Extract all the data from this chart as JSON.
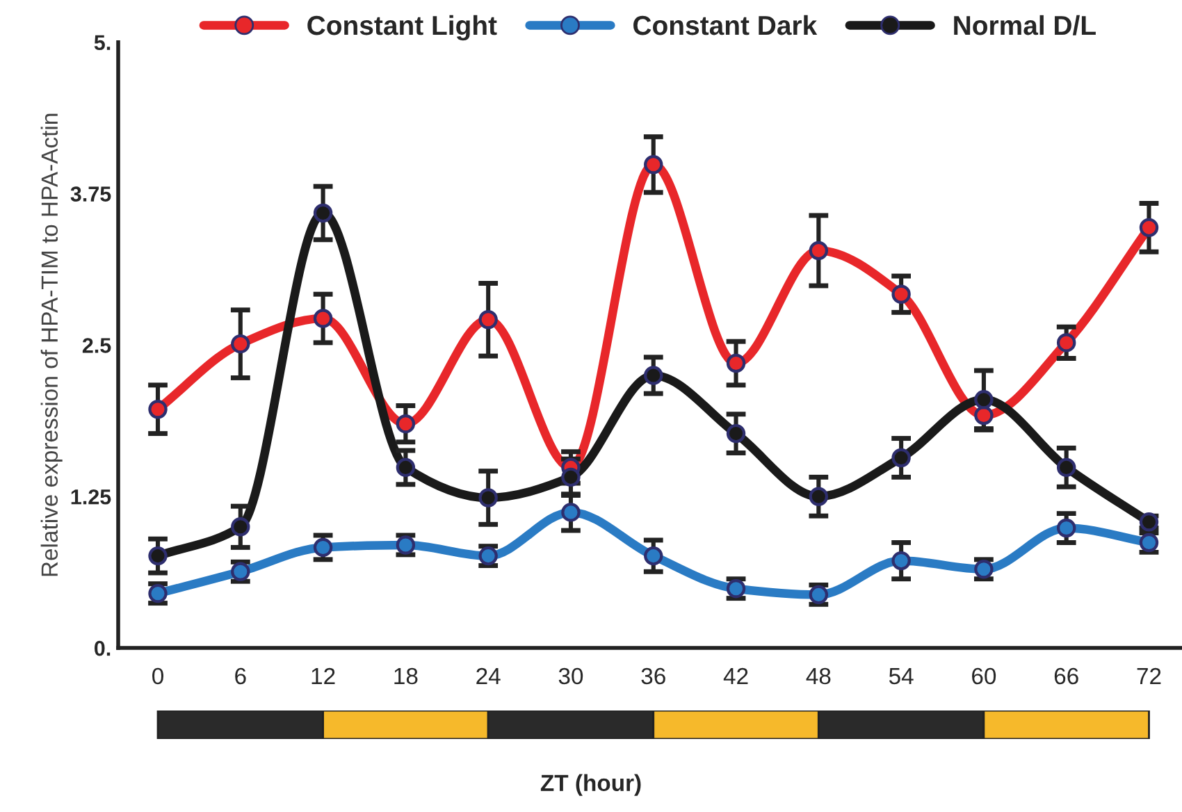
{
  "chart_data": {
    "type": "line",
    "xlabel": "ZT (hour)",
    "ylabel": "Relative expression of HPA-TIM to HPA-Actin",
    "categories": [
      "0",
      "6",
      "12",
      "18",
      "24",
      "30",
      "36",
      "42",
      "48",
      "54",
      "60",
      "66",
      "72"
    ],
    "ylim": [
      0,
      5
    ],
    "yticks": [
      {
        "value": 0,
        "label": "0."
      },
      1.25,
      2.5,
      3.75,
      {
        "value": 5,
        "label": "5."
      }
    ],
    "grid": false,
    "legend": "top",
    "marker": "circle",
    "line_style": "solid",
    "series": [
      {
        "name": "Constant Light",
        "color": "#e8272a",
        "values": [
          1.97,
          2.51,
          2.72,
          1.85,
          2.71,
          1.49,
          3.99,
          2.35,
          3.28,
          2.92,
          1.92,
          2.52,
          3.47
        ],
        "errors": [
          0.2,
          0.28,
          0.2,
          0.15,
          0.3,
          0.13,
          0.23,
          0.18,
          0.29,
          0.15,
          0.12,
          0.13,
          0.2
        ]
      },
      {
        "name": "Constant Dark",
        "color": "#2a7bc4",
        "values": [
          0.45,
          0.63,
          0.83,
          0.85,
          0.76,
          1.12,
          0.76,
          0.49,
          0.44,
          0.72,
          0.65,
          0.99,
          0.87
        ],
        "errors": [
          0.08,
          0.08,
          0.1,
          0.08,
          0.08,
          0.15,
          0.13,
          0.08,
          0.08,
          0.15,
          0.08,
          0.12,
          0.08
        ]
      },
      {
        "name": "Normal D/L",
        "color": "#1a1a1a",
        "values": [
          0.76,
          1.0,
          3.59,
          1.49,
          1.24,
          1.41,
          2.25,
          1.77,
          1.25,
          1.57,
          2.05,
          1.49,
          1.04
        ],
        "errors": [
          0.14,
          0.17,
          0.22,
          0.14,
          0.22,
          0.15,
          0.15,
          0.16,
          0.16,
          0.16,
          0.24,
          0.16,
          0.05
        ]
      }
    ]
  }
}
